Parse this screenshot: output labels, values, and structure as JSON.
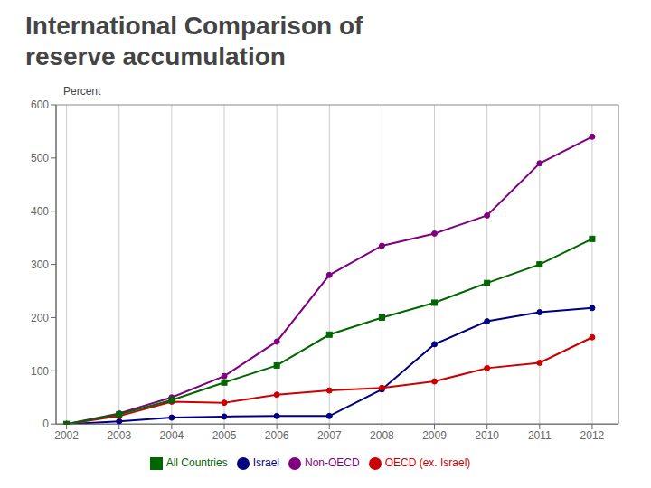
{
  "chart_data": {
    "type": "line",
    "title": "International Comparison of",
    "subtitle": "reserve accumulation",
    "ylabel": "Percent",
    "xlim": [
      2001.8,
      2012.5
    ],
    "xticks": [
      2002,
      2003,
      2004,
      2005,
      2006,
      2007,
      2008,
      2009,
      2010,
      2011,
      2012
    ],
    "ylim": [
      0,
      600
    ],
    "yticks": [
      0,
      100,
      200,
      300,
      400,
      500,
      600
    ],
    "grid": "x",
    "legend": "bottom",
    "x": [
      2002,
      2003,
      2004,
      2005,
      2006,
      2007,
      2008,
      2009,
      2010,
      2011,
      2012
    ],
    "series": [
      {
        "name": "Israel",
        "color": "#000080",
        "marker": "circle",
        "values": [
          0,
          5,
          12,
          14,
          15,
          15,
          65,
          150,
          193,
          210,
          218
        ]
      },
      {
        "name": "OECD (ex. Israel)",
        "color": "#cc0000",
        "marker": "circle",
        "values": [
          0,
          15,
          42,
          40,
          55,
          63,
          68,
          80,
          105,
          115,
          163
        ]
      },
      {
        "name": "Non-OECD",
        "color": "#800080",
        "marker": "circle",
        "values": [
          0,
          20,
          50,
          90,
          155,
          280,
          335,
          358,
          392,
          490,
          540
        ]
      },
      {
        "name": "All Countries",
        "color": "#006600",
        "marker": "square",
        "values": [
          0,
          18,
          45,
          78,
          110,
          168,
          200,
          228,
          265,
          300,
          348
        ]
      }
    ]
  }
}
